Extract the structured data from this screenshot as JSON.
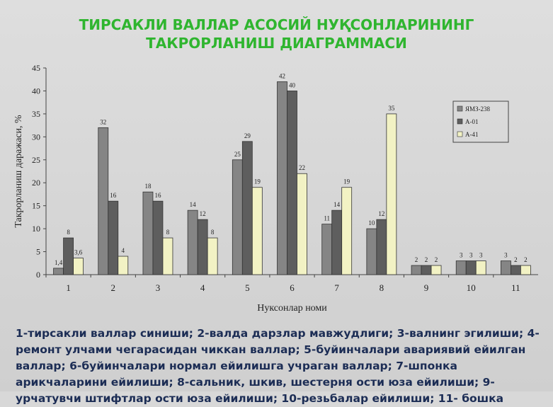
{
  "chart_data": {
    "type": "bar",
    "title": "ТИРСАКЛИ ВАЛЛАР АСОСИЙ НУҚСОНЛАРИНИНГ ТАКРОРЛАНИШ ДИАГРАММАСИ",
    "x_label": "Нуксонлар номи",
    "y_label": "Такрорланиш даражаси, %",
    "categories": [
      "1",
      "2",
      "3",
      "4",
      "5",
      "6",
      "7",
      "8",
      "9",
      "10",
      "11"
    ],
    "series": [
      {
        "name": "ЯМЗ-238",
        "color": "#858585",
        "values": [
          1.4,
          32,
          18,
          14,
          25,
          42,
          11,
          10,
          2,
          3,
          3
        ],
        "value_labels": [
          "1,4",
          "32",
          "18",
          "14",
          "25",
          "42",
          "11",
          "10",
          "2",
          "3",
          "3"
        ]
      },
      {
        "name": "А-01",
        "color": "#5e5e5e",
        "values": [
          8,
          16,
          16,
          12,
          29,
          40,
          14,
          12,
          2,
          3,
          2
        ]
      },
      {
        "name": "А-41",
        "color": "#f2f2c4",
        "values": [
          3.6,
          4,
          8,
          8,
          19,
          22,
          19,
          35,
          2,
          3,
          2
        ],
        "value_labels": [
          "3,6",
          "4",
          "8",
          "8",
          "19",
          "22",
          "19",
          "35",
          "2",
          "3",
          "2"
        ]
      }
    ],
    "ylim": [
      0,
      45
    ],
    "yticks": [
      0,
      5,
      10,
      15,
      20,
      25,
      30,
      35,
      40,
      45
    ],
    "legend": "upper right",
    "notes": "1-тирсакли валлар синиши; 2-валда дарзлар мавжудлиги; 3-валнинг  эгилиши; 4-ремонт улчами чегарасидан чиккан валлар; 5-буйинчалари авариявий ейилган валлар; 6-буйинчалари нормал ейилишга учраган валлар; 7-шпонка арикчаларини ейилиши; 8-сальник, шкив, шестерня ости юза ейилиши; 9-урчатувчи штифтлар ости юза ейилиши; 10-резьбалар ейилиши; 11- бошка"
  }
}
